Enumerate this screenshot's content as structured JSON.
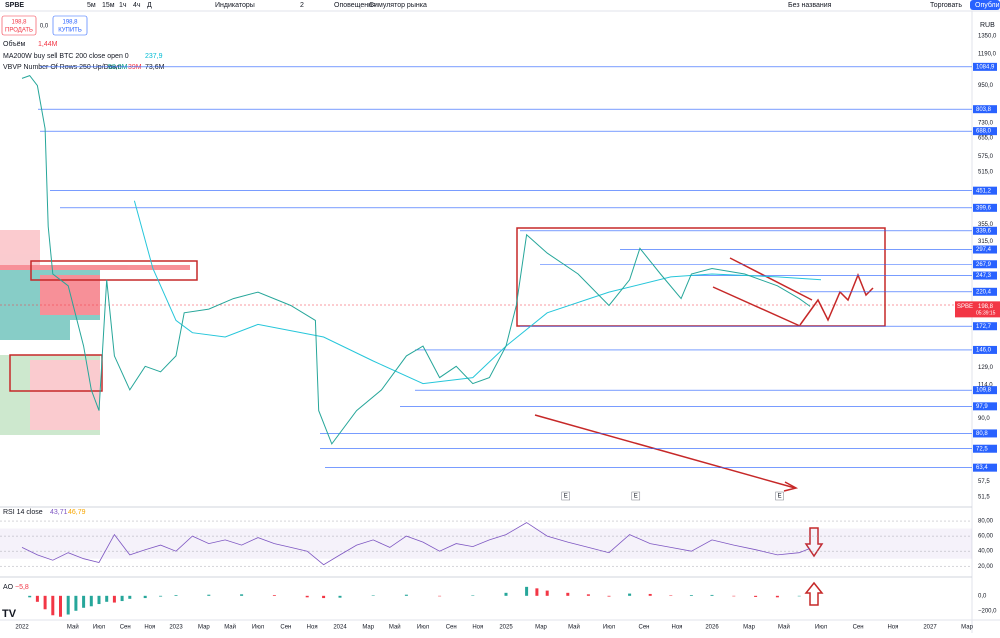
{
  "toolbar": {
    "symbol": "SPBE",
    "intervals": [
      "5м",
      "15м",
      "1ч",
      "4ч",
      "Д"
    ],
    "indicators": "Индикаторы",
    "layouts": "2",
    "alerts": "Оповещения",
    "replay": "Симулятор рынка",
    "layout_name": "Без названия",
    "trade": "Торговать",
    "publish": "Опубли"
  },
  "trade_panel": {
    "sell_price": "198,8",
    "sell": "ПРОДАТЬ",
    "spread": "0,0",
    "buy_price": "198,8",
    "buy": "КУПИТЬ"
  },
  "legend": {
    "volume": {
      "name": "Объём",
      "value": "1,44M"
    },
    "ma": {
      "name": "MA200W buy sell BTC 200 close open 0",
      "value": "237,9"
    },
    "vbvp": {
      "name": "VBVP Number Of Rows 250 Up/Down",
      "values": [
        "58,0M",
        "39M",
        "73,6M"
      ]
    }
  },
  "price_axis": {
    "currency": "RUB",
    "log": true,
    "ylim": [
      51.5,
      1350
    ],
    "ticks": [
      {
        "value": 1350,
        "label": "1350,0"
      },
      {
        "value": 1190,
        "label": "1190,0"
      },
      {
        "value": 1084.9,
        "label": "1084,9",
        "level": true
      },
      {
        "value": 950,
        "label": "950,0"
      },
      {
        "value": 803.8,
        "label": "803,8",
        "level": true
      },
      {
        "value": 730,
        "label": "730,0"
      },
      {
        "value": 688,
        "label": "688,0",
        "level": true
      },
      {
        "value": 655,
        "label": "655,0"
      },
      {
        "value": 575,
        "label": "575,0"
      },
      {
        "value": 515,
        "label": "515,0"
      },
      {
        "value": 451.2,
        "label": "451,2",
        "level": true
      },
      {
        "value": 399.6,
        "label": "399,6",
        "level": true
      },
      {
        "value": 355,
        "label": "355,0"
      },
      {
        "value": 339.6,
        "label": "339,6",
        "level": true
      },
      {
        "value": 315,
        "label": "315,0"
      },
      {
        "value": 297.4,
        "label": "297,4",
        "level": true
      },
      {
        "value": 267.9,
        "label": "267,9",
        "level": true
      },
      {
        "value": 247.3,
        "label": "247,3",
        "level": true
      },
      {
        "value": 220.4,
        "label": "220,4",
        "level": true
      },
      {
        "value": 172.7,
        "label": "172,7",
        "level": true
      },
      {
        "value": 146,
        "label": "146,0",
        "level": true
      },
      {
        "value": 129,
        "label": "129,0"
      },
      {
        "value": 114,
        "label": "114,0"
      },
      {
        "value": 109.8,
        "label": "109,8",
        "level": true
      },
      {
        "value": 97.9,
        "label": "97,9",
        "level": true
      },
      {
        "value": 90,
        "label": "90,0"
      },
      {
        "value": 80.8,
        "label": "80,8",
        "level": true
      },
      {
        "value": 72.5,
        "label": "72,5",
        "level": true
      },
      {
        "value": 63.4,
        "label": "63,4",
        "level": true
      },
      {
        "value": 57.5,
        "label": "57,5"
      },
      {
        "value": 51.5,
        "label": "51,5"
      }
    ]
  },
  "last_price": {
    "symbol": "SPBE",
    "value": 198.8,
    "label": "198,8",
    "countdown": "05:39:15"
  },
  "price": {
    "x": [
      2022.0,
      2022.05,
      2022.1,
      2022.15,
      2022.17,
      2022.2,
      2022.3,
      2022.4,
      2022.45,
      2022.5,
      2022.55,
      2022.6,
      2022.7,
      2022.8,
      2022.9,
      2023.0,
      2023.05,
      2023.2,
      2023.35,
      2023.5,
      2023.7,
      2023.85,
      2023.87,
      2023.95,
      2024.1,
      2024.25,
      2024.4,
      2024.5,
      2024.6,
      2024.7,
      2024.8,
      2024.9,
      2025.0,
      2025.05,
      2025.1,
      2025.2,
      2025.35,
      2025.5,
      2025.6,
      2025.65,
      2025.75,
      2025.85,
      2025.9,
      2026.0,
      2026.15,
      2026.3,
      2026.4,
      2026.45
    ],
    "values": [
      1000,
      1020,
      950,
      700,
      350,
      250,
      230,
      150,
      110,
      95,
      240,
      140,
      110,
      130,
      125,
      140,
      190,
      195,
      210,
      220,
      200,
      180,
      95,
      75,
      95,
      110,
      140,
      150,
      120,
      130,
      115,
      120,
      150,
      200,
      330,
      290,
      250,
      200,
      240,
      300,
      250,
      210,
      250,
      260,
      250,
      230,
      210,
      198.8
    ]
  },
  "ma": {
    "x": [
      2022.73,
      2022.85,
      2023.0,
      2023.1,
      2023.3,
      2023.5,
      2023.9,
      2024.2,
      2024.5,
      2024.8,
      2025.0,
      2025.2,
      2025.5,
      2025.8,
      2026.0,
      2026.3,
      2026.5
    ],
    "values": [
      420,
      260,
      180,
      165,
      160,
      175,
      160,
      135,
      115,
      120,
      150,
      190,
      220,
      245,
      250,
      245,
      240
    ]
  },
  "earnings": {
    "labels": [
      "E",
      "E",
      "E"
    ],
    "x": [
      2025.29,
      2025.63,
      2026.31
    ]
  },
  "rsi": {
    "title": "RSI 14 close",
    "printed": [
      "43,71",
      "46,79"
    ],
    "ylim": [
      11,
      96
    ],
    "ticks": [
      {
        "value": 80,
        "label": "80,00"
      },
      {
        "value": 60,
        "label": "60,00"
      },
      {
        "value": 40,
        "label": "40,00"
      },
      {
        "value": 20,
        "label": "20,00"
      }
    ],
    "x": [
      2022.0,
      2022.1,
      2022.2,
      2022.3,
      2022.4,
      2022.5,
      2022.6,
      2022.7,
      2022.8,
      2022.9,
      2023.0,
      2023.1,
      2023.2,
      2023.3,
      2023.4,
      2023.5,
      2023.6,
      2023.7,
      2023.8,
      2023.9,
      2024.0,
      2024.1,
      2024.2,
      2024.3,
      2024.4,
      2024.5,
      2024.6,
      2024.7,
      2024.8,
      2024.9,
      2025.0,
      2025.1,
      2025.2,
      2025.3,
      2025.4,
      2025.5,
      2025.6,
      2025.7,
      2025.8,
      2025.9,
      2026.0,
      2026.1,
      2026.2,
      2026.3,
      2026.4,
      2026.45
    ],
    "values": [
      45,
      35,
      28,
      38,
      30,
      25,
      62,
      35,
      42,
      48,
      40,
      60,
      50,
      55,
      48,
      58,
      50,
      45,
      40,
      22,
      35,
      48,
      55,
      45,
      60,
      52,
      40,
      50,
      46,
      55,
      62,
      78,
      60,
      52,
      45,
      38,
      62,
      50,
      45,
      40,
      55,
      48,
      42,
      35,
      38,
      43.71
    ]
  },
  "ao": {
    "title": "AO",
    "value": "−5,8",
    "ylim": [
      -310,
      225
    ],
    "ticks": [
      {
        "value": 0,
        "label": "0,0"
      },
      {
        "value": -200,
        "label": "−200,0"
      }
    ],
    "x": [
      2022.05,
      2022.1,
      2022.15,
      2022.2,
      2022.25,
      2022.3,
      2022.35,
      2022.4,
      2022.45,
      2022.5,
      2022.55,
      2022.6,
      2022.65,
      2022.7,
      2022.8,
      2022.9,
      2023.0,
      2023.2,
      2023.4,
      2023.6,
      2023.8,
      2023.9,
      2024.0,
      2024.2,
      2024.4,
      2024.6,
      2024.8,
      2025.0,
      2025.1,
      2025.15,
      2025.2,
      2025.3,
      2025.4,
      2025.5,
      2025.6,
      2025.7,
      2025.8,
      2025.9,
      2026.0,
      2026.1,
      2026.2,
      2026.3,
      2026.4
    ],
    "values": [
      -20,
      -80,
      -180,
      -260,
      -280,
      -250,
      -200,
      -160,
      -140,
      -110,
      -80,
      -90,
      -70,
      -40,
      -30,
      -10,
      10,
      15,
      20,
      10,
      -20,
      -30,
      -25,
      5,
      15,
      -5,
      5,
      40,
      120,
      100,
      70,
      40,
      20,
      -10,
      30,
      25,
      5,
      10,
      12,
      -5,
      -15,
      -20,
      -5.8
    ]
  },
  "time_axis": {
    "labels": [
      "2022",
      "Май",
      "Июл",
      "Сен",
      "Ноя",
      "2023",
      "Мар",
      "Май",
      "Июл",
      "Сен",
      "Ноя",
      "2024",
      "Мар",
      "Май",
      "Июл",
      "Сен",
      "Ноя",
      "2025",
      "Мар",
      "Май",
      "Июл",
      "Сен",
      "Ноя",
      "2026",
      "Мар",
      "Май",
      "Июл",
      "Сен",
      "Ноя",
      "2027",
      "Мар"
    ],
    "x": [
      2022.0,
      2022.33,
      2022.5,
      2022.67,
      2022.83,
      2023.0,
      2023.17,
      2023.33,
      2023.5,
      2023.67,
      2023.83,
      2024.0,
      2024.17,
      2024.33,
      2024.5,
      2024.67,
      2024.83,
      2025.0,
      2025.17,
      2025.33,
      2025.5,
      2025.67,
      2025.83,
      2026.0,
      2026.17,
      2026.33,
      2026.5,
      2026.67,
      2026.83,
      2027.0,
      2027.17
    ]
  }
}
